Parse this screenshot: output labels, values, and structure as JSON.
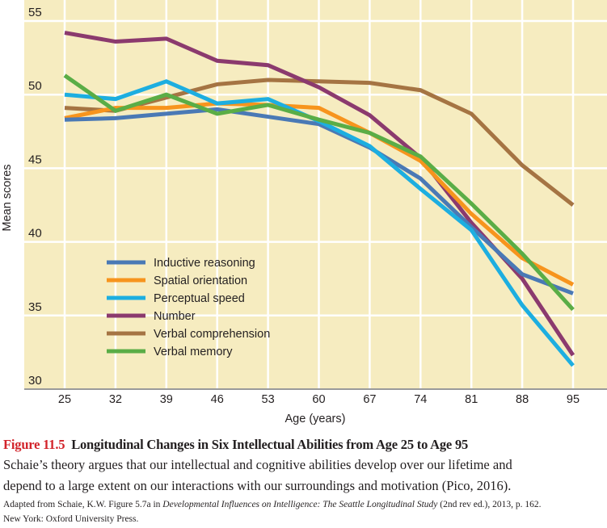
{
  "chart_data": {
    "type": "line",
    "title": "",
    "xlabel": "Age (years)",
    "ylabel": "Mean scores",
    "x": [
      25,
      32,
      39,
      46,
      53,
      60,
      67,
      74,
      81,
      88,
      95
    ],
    "ylim": [
      30,
      55
    ],
    "yticks": [
      30,
      35,
      40,
      45,
      50,
      55
    ],
    "grid": true,
    "legend_position": "bottom-left",
    "background": "#f6ecc0",
    "series": [
      {
        "name": "Inductive reasoning",
        "color": "#4a79b5",
        "values": [
          48.3,
          48.4,
          48.7,
          49.0,
          48.5,
          48.0,
          46.4,
          44.3,
          41.0,
          37.8,
          36.5
        ]
      },
      {
        "name": "Spatial orientation",
        "color": "#f7941d",
        "values": [
          48.4,
          49.1,
          49.1,
          49.4,
          49.3,
          49.1,
          47.4,
          45.5,
          41.9,
          38.9,
          37.1
        ]
      },
      {
        "name": "Perceptual speed",
        "color": "#1daee0",
        "values": [
          50.0,
          49.7,
          50.9,
          49.4,
          49.7,
          48.2,
          46.5,
          43.6,
          40.8,
          35.7,
          31.6
        ]
      },
      {
        "name": "Number",
        "color": "#8b3a6e",
        "values": [
          54.2,
          53.6,
          53.8,
          52.3,
          52.0,
          50.5,
          48.6,
          45.7,
          41.3,
          37.5,
          32.3
        ]
      },
      {
        "name": "Verbal comprehension",
        "color": "#a57443",
        "values": [
          49.1,
          48.9,
          49.8,
          50.7,
          51.0,
          50.9,
          50.8,
          50.3,
          48.7,
          45.2,
          42.5
        ]
      },
      {
        "name": "Verbal memory",
        "color": "#5aad46",
        "values": [
          51.3,
          48.9,
          50.0,
          48.7,
          49.3,
          48.3,
          47.4,
          45.8,
          42.6,
          39.2,
          35.4
        ]
      }
    ]
  },
  "caption": {
    "figure_number": "Figure 11.5",
    "title": "Longitudinal Changes in Six Intellectual Abilities from Age 25 to Age 95",
    "body_line1": "Schaie’s theory argues that our intellectual and cognitive abilities develop over our lifetime and",
    "body_line2": "depend to a large extent on our interactions with our surroundings and motivation (Pico, 2016).",
    "source_prefix": "Adapted from Schaie, K.W. Figure 5.7a in ",
    "source_italic": "Developmental Influences on Intelligence: The Seattle Longitudinal Study",
    "source_suffix": " (2nd rev ed.), 2013, p. 162.",
    "source_line2": "New York: Oxford University Press."
  }
}
